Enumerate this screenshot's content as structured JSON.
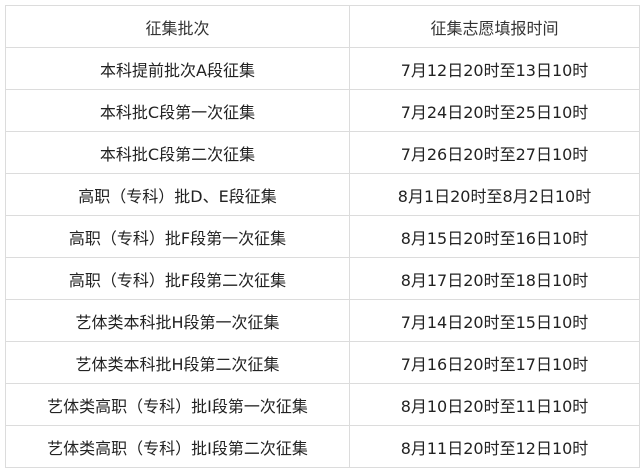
{
  "table": {
    "headers": [
      "征集批次",
      "征集志愿填报时间"
    ],
    "rows": [
      [
        "本科提前批次A段征集",
        "7月12日20时至13日10时"
      ],
      [
        "本科批C段第一次征集",
        "7月24日20时至25日10时"
      ],
      [
        "本科批C段第二次征集",
        "7月26日20时至27日10时"
      ],
      [
        "高职（专科）批D、E段征集",
        "8月1日20时至8月2日10时"
      ],
      [
        "高职（专科）批F段第一次征集",
        "8月15日20时至16日10时"
      ],
      [
        "高职（专科）批F段第二次征集",
        "8月17日20时至18日10时"
      ],
      [
        "艺体类本科批H段第一次征集",
        "7月14日20时至15日10时"
      ],
      [
        "艺体类本科批H段第二次征集",
        "7月16日20时至17日10时"
      ],
      [
        "艺体类高职（专科）批I段第一次征集",
        "8月10日20时至11日10时"
      ],
      [
        "艺体类高职（专科）批I段第二次征集",
        "8月11日20时至12日10时"
      ]
    ]
  }
}
